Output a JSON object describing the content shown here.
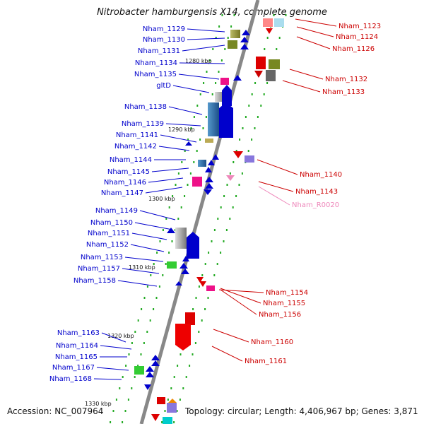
{
  "title": "Nitrobacter hamburgensis X14, complete genome",
  "footer": {
    "accession": "Accession: NC_007964",
    "topology": "Topology: circular; Length: 4,406,967 bp; Genes: 3,871"
  },
  "colors": {
    "left_label": "#0000cc",
    "right_label": "#cc0000",
    "rna_label": "#ee88bb",
    "axis": "#888888",
    "tick": "#22aa22"
  },
  "kbp_labels": [
    "1280 kbp",
    "1290 kbp",
    "1300 kbp",
    "1310 kbp",
    "1320 kbp",
    "1330 kbp"
  ],
  "left_labels": [
    "Nham_1129",
    "Nham_1130",
    "Nham_1131",
    "Nham_1134",
    "Nham_1135",
    "gltD",
    "Nham_1138",
    "Nham_1139",
    "Nham_1141",
    "Nham_1142",
    "Nham_1144",
    "Nham_1145",
    "Nham_1146",
    "Nham_1147",
    "Nham_1149",
    "Nham_1150",
    "Nham_1151",
    "Nham_1152",
    "Nham_1153",
    "Nham_1157",
    "Nham_1158",
    "Nham_1163",
    "Nham_1164",
    "Nham_1165",
    "Nham_1167",
    "Nham_1168"
  ],
  "right_labels": [
    "Nham_1123",
    "Nham_1124",
    "Nham_1126",
    "Nham_1132",
    "Nham_1133",
    "Nham_1140",
    "Nham_1143",
    "Nham_R0020",
    "Nham_1154",
    "Nham_1155",
    "Nham_1156",
    "Nham_1160",
    "Nham_1161"
  ]
}
